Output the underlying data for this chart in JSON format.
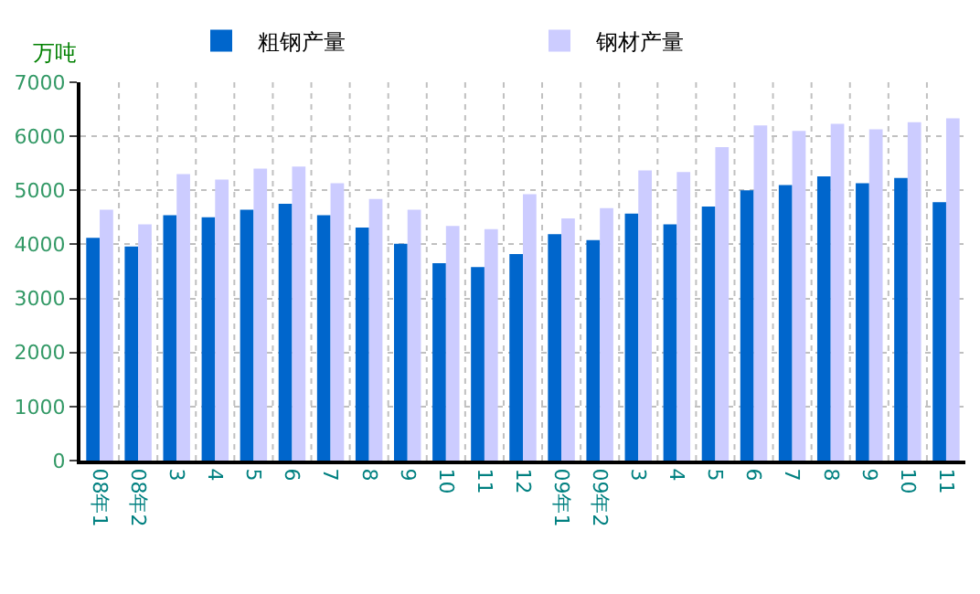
{
  "chart_data": {
    "type": "bar",
    "ylabel": "万吨",
    "categories": [
      "08年1",
      "08年2",
      "3",
      "4",
      "5",
      "6",
      "7",
      "8",
      "9",
      "10",
      "11",
      "12",
      "09年1",
      "09年2",
      "3",
      "4",
      "5",
      "6",
      "7",
      "8",
      "9",
      "10",
      "11"
    ],
    "series": [
      {
        "name": "粗钢产量",
        "color": "#0066cc",
        "values": [
          4120,
          3960,
          4540,
          4500,
          4640,
          4750,
          4540,
          4310,
          4010,
          3650,
          3580,
          3820,
          4190,
          4080,
          4570,
          4370,
          4700,
          5000,
          5100,
          5260,
          5130,
          5230,
          4780
        ]
      },
      {
        "name": "钢材产量",
        "color": "#ccccff",
        "values": [
          4640,
          4370,
          5300,
          5200,
          5400,
          5440,
          5130,
          4840,
          4640,
          4340,
          4280,
          4930,
          4480,
          4670,
          5370,
          5340,
          5800,
          6200,
          6100,
          6230,
          6130,
          6260,
          6330
        ]
      }
    ],
    "ylim": [
      0,
      7000
    ],
    "yticks": [
      0,
      1000,
      2000,
      3000,
      4000,
      5000,
      6000,
      7000
    ],
    "grid": true,
    "legend": "top"
  }
}
